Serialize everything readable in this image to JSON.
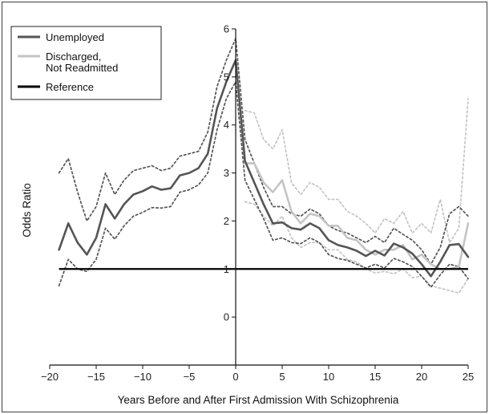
{
  "chart_data": {
    "type": "line",
    "title": "",
    "xlabel": "Years Before and After First Admission With Schizophrenia",
    "ylabel": "Odds Ratio",
    "xlim": [
      -20,
      25
    ],
    "ylim": [
      -1,
      6
    ],
    "xticks": [
      -20,
      -15,
      -10,
      -5,
      0,
      5,
      10,
      15,
      20,
      25
    ],
    "yticks": [
      0,
      1,
      2,
      3,
      4,
      5,
      6
    ],
    "grid": false,
    "legend_position": "top-left",
    "legend": [
      {
        "label": "Unemployed",
        "color": "#555555",
        "style": "solid"
      },
      {
        "label": "Discharged, Not Readmitted",
        "color": "#c4c4c4",
        "style": "solid"
      },
      {
        "label": "Reference",
        "color": "#000000",
        "style": "solid"
      }
    ],
    "reference_line": {
      "name": "Reference",
      "y": 1,
      "x_range": [
        -19,
        25
      ]
    },
    "series": [
      {
        "name": "Unemployed",
        "color": "#555555",
        "style": "solid",
        "x": [
          -19,
          -18,
          -17,
          -16,
          -15,
          -14,
          -13,
          -12,
          -11,
          -10,
          -9,
          -8,
          -7,
          -6,
          -5,
          -4,
          -3,
          -2,
          -1,
          0,
          1,
          2,
          3,
          4,
          5,
          6,
          7,
          8,
          9,
          10,
          11,
          12,
          13,
          14,
          15,
          16,
          17,
          18,
          19,
          20,
          21,
          22,
          23,
          24,
          25
        ],
        "values": [
          1.4,
          1.95,
          1.55,
          1.3,
          1.65,
          2.35,
          2.05,
          2.35,
          2.55,
          2.62,
          2.72,
          2.65,
          2.68,
          2.95,
          3.0,
          3.1,
          3.4,
          4.35,
          4.9,
          5.35,
          3.25,
          2.8,
          2.35,
          1.95,
          1.97,
          1.85,
          1.82,
          1.95,
          1.85,
          1.6,
          1.5,
          1.45,
          1.38,
          1.27,
          1.38,
          1.28,
          1.53,
          1.45,
          1.32,
          1.1,
          0.85,
          1.15,
          1.5,
          1.52,
          1.25
        ]
      },
      {
        "name": "Unemployed 95% CI upper",
        "color": "#555555",
        "style": "dotted",
        "x": [
          -19,
          -18,
          -17,
          -16,
          -15,
          -14,
          -13,
          -12,
          -11,
          -10,
          -9,
          -8,
          -7,
          -6,
          -5,
          -4,
          -3,
          -2,
          -1,
          0,
          1,
          2,
          3,
          4,
          5,
          6,
          7,
          8,
          9,
          10,
          11,
          12,
          13,
          14,
          15,
          16,
          17,
          18,
          19,
          20,
          21,
          22,
          23,
          24,
          25
        ],
        "values": [
          3.0,
          3.3,
          2.6,
          2.0,
          2.3,
          3.0,
          2.55,
          2.85,
          3.05,
          3.1,
          3.15,
          3.05,
          3.1,
          3.35,
          3.4,
          3.45,
          3.85,
          4.8,
          5.35,
          5.8,
          3.7,
          3.2,
          2.7,
          2.3,
          2.3,
          2.15,
          2.1,
          2.25,
          2.15,
          1.9,
          1.8,
          1.75,
          1.65,
          1.55,
          1.68,
          1.55,
          1.85,
          1.72,
          1.6,
          1.4,
          1.1,
          1.45,
          2.15,
          2.3,
          2.1
        ]
      },
      {
        "name": "Unemployed 95% CI lower",
        "color": "#555555",
        "style": "dotted",
        "x": [
          -19,
          -18,
          -17,
          -16,
          -15,
          -14,
          -13,
          -12,
          -11,
          -10,
          -9,
          -8,
          -7,
          -6,
          -5,
          -4,
          -3,
          -2,
          -1,
          0,
          1,
          2,
          3,
          4,
          5,
          6,
          7,
          8,
          9,
          10,
          11,
          12,
          13,
          14,
          15,
          16,
          17,
          18,
          19,
          20,
          21,
          22,
          23,
          24,
          25
        ],
        "values": [
          0.65,
          1.2,
          1.0,
          0.95,
          1.2,
          1.85,
          1.62,
          1.9,
          2.1,
          2.18,
          2.28,
          2.27,
          2.3,
          2.6,
          2.65,
          2.75,
          3.0,
          3.9,
          4.55,
          4.9,
          2.85,
          2.45,
          2.05,
          1.6,
          1.65,
          1.55,
          1.53,
          1.65,
          1.55,
          1.3,
          1.22,
          1.18,
          1.1,
          1.02,
          1.1,
          1.02,
          1.22,
          1.15,
          1.05,
          0.85,
          0.62,
          0.88,
          1.1,
          1.05,
          0.8
        ]
      },
      {
        "name": "Discharged, Not Readmitted",
        "color": "#c4c4c4",
        "style": "solid",
        "x": [
          1,
          2,
          3,
          4,
          5,
          6,
          7,
          8,
          9,
          10,
          11,
          12,
          13,
          14,
          15,
          16,
          17,
          18,
          19,
          20,
          21,
          22,
          23,
          24,
          25
        ],
        "values": [
          3.2,
          3.2,
          2.8,
          2.6,
          2.85,
          2.2,
          1.95,
          2.15,
          2.1,
          1.9,
          1.9,
          1.65,
          1.6,
          1.4,
          1.3,
          1.4,
          1.4,
          1.5,
          1.2,
          1.3,
          1.1,
          1.0,
          1.0,
          1.05,
          1.95
        ]
      },
      {
        "name": "Discharged, Not Readmitted 95% CI upper",
        "color": "#c4c4c4",
        "style": "dotted",
        "x": [
          1,
          2,
          3,
          4,
          5,
          6,
          7,
          8,
          9,
          10,
          11,
          12,
          13,
          14,
          15,
          16,
          17,
          18,
          19,
          20,
          21,
          22,
          23,
          24,
          25
        ],
        "values": [
          4.3,
          4.25,
          3.7,
          3.5,
          3.9,
          2.8,
          2.55,
          2.8,
          2.7,
          2.45,
          2.45,
          2.2,
          2.1,
          1.95,
          1.75,
          2.05,
          1.95,
          2.2,
          1.75,
          1.95,
          1.75,
          2.45,
          1.55,
          1.85,
          4.55
        ]
      },
      {
        "name": "Discharged, Not Readmitted 95% CI lower",
        "color": "#c4c4c4",
        "style": "dotted",
        "x": [
          1,
          2,
          3,
          4,
          5,
          6,
          7,
          8,
          9,
          10,
          11,
          12,
          13,
          14,
          15,
          16,
          17,
          18,
          19,
          20,
          21,
          22,
          23,
          24,
          25
        ],
        "values": [
          2.4,
          2.35,
          2.1,
          1.9,
          2.1,
          1.65,
          1.45,
          1.55,
          1.55,
          1.4,
          1.4,
          1.2,
          1.15,
          1.0,
          0.92,
          0.95,
          0.9,
          1.0,
          0.82,
          0.85,
          0.65,
          0.6,
          0.55,
          0.5,
          0.8
        ]
      }
    ]
  }
}
